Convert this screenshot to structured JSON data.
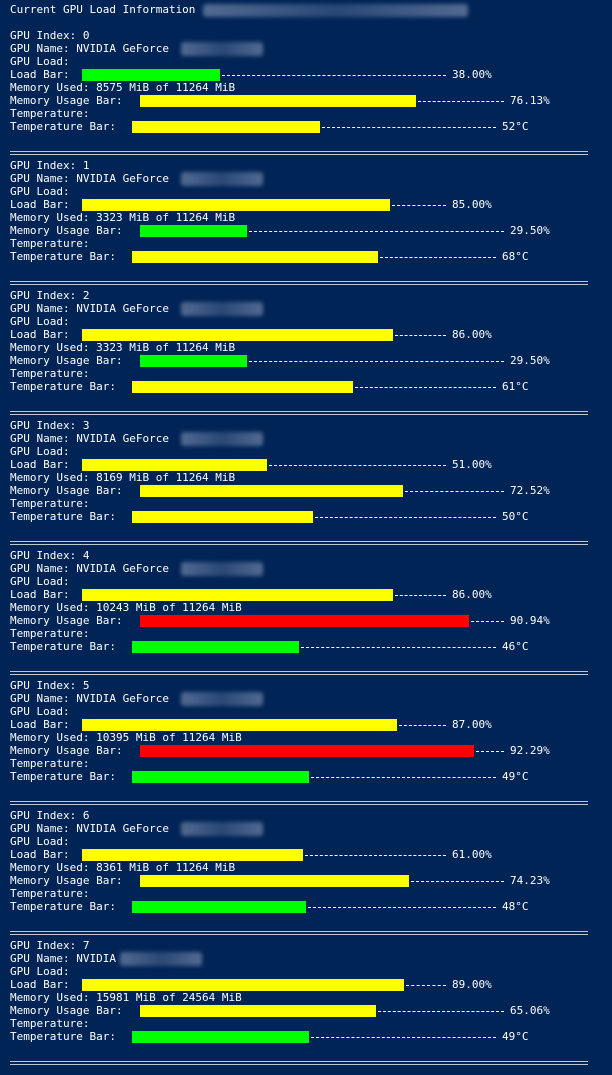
{
  "window": {
    "title": "Current GPU Load Information"
  },
  "labels": {
    "index": "GPU Index: ",
    "name": "GPU Name: ",
    "load_header": "GPU Load:",
    "load_bar": "Load Bar:",
    "memory_used": "Memory Used: ",
    "memory_bar": "Memory Usage Bar:",
    "temp_header": "Temperature:",
    "temp_bar": "Temperature Bar:"
  },
  "colors": {
    "background": "#012456",
    "green": "#00ff00",
    "yellow": "#ffff00",
    "red": "#ff0000",
    "text": "#ffffff"
  },
  "gpus": [
    {
      "index": "0",
      "name": "NVIDIA GeForce",
      "load_pct": 38.0,
      "load_text": "38.00%",
      "load_color": "green",
      "memory_used": "8575 MiB of 11264 MiB",
      "mem_pct": 76.13,
      "mem_text": "76.13%",
      "mem_color": "yellow",
      "temp_c": 52,
      "temp_text": "52°C",
      "temp_color": "yellow"
    },
    {
      "index": "1",
      "name": "NVIDIA GeForce",
      "load_pct": 85.0,
      "load_text": "85.00%",
      "load_color": "yellow",
      "memory_used": "3323 MiB of 11264 MiB",
      "mem_pct": 29.5,
      "mem_text": "29.50%",
      "mem_color": "green",
      "temp_c": 68,
      "temp_text": "68°C",
      "temp_color": "yellow"
    },
    {
      "index": "2",
      "name": "NVIDIA GeForce",
      "load_pct": 86.0,
      "load_text": "86.00%",
      "load_color": "yellow",
      "memory_used": "3323 MiB of 11264 MiB",
      "mem_pct": 29.5,
      "mem_text": "29.50%",
      "mem_color": "green",
      "temp_c": 61,
      "temp_text": "61°C",
      "temp_color": "yellow"
    },
    {
      "index": "3",
      "name": "NVIDIA GeForce",
      "load_pct": 51.0,
      "load_text": "51.00%",
      "load_color": "yellow",
      "memory_used": "8169 MiB of 11264 MiB",
      "mem_pct": 72.52,
      "mem_text": "72.52%",
      "mem_color": "yellow",
      "temp_c": 50,
      "temp_text": "50°C",
      "temp_color": "yellow"
    },
    {
      "index": "4",
      "name": "NVIDIA GeForce",
      "load_pct": 86.0,
      "load_text": "86.00%",
      "load_color": "yellow",
      "memory_used": "10243 MiB of 11264 MiB",
      "mem_pct": 90.94,
      "mem_text": "90.94%",
      "mem_color": "red",
      "temp_c": 46,
      "temp_text": "46°C",
      "temp_color": "green"
    },
    {
      "index": "5",
      "name": "NVIDIA GeForce",
      "load_pct": 87.0,
      "load_text": "87.00%",
      "load_color": "yellow",
      "memory_used": "10395 MiB of 11264 MiB",
      "mem_pct": 92.29,
      "mem_text": "92.29%",
      "mem_color": "red",
      "temp_c": 49,
      "temp_text": "49°C",
      "temp_color": "green"
    },
    {
      "index": "6",
      "name": "NVIDIA GeForce",
      "load_pct": 61.0,
      "load_text": "61.00%",
      "load_color": "yellow",
      "memory_used": "8361 MiB of 11264 MiB",
      "mem_pct": 74.23,
      "mem_text": "74.23%",
      "mem_color": "yellow",
      "temp_c": 48,
      "temp_text": "48°C",
      "temp_color": "green"
    },
    {
      "index": "7",
      "name": "NVIDIA",
      "load_pct": 89.0,
      "load_text": "89.00%",
      "load_color": "yellow",
      "memory_used": "15981 MiB of 24564 MiB",
      "mem_pct": 65.06,
      "mem_text": "65.06%",
      "mem_color": "yellow",
      "temp_c": 49,
      "temp_text": "49°C",
      "temp_color": "green"
    }
  ]
}
